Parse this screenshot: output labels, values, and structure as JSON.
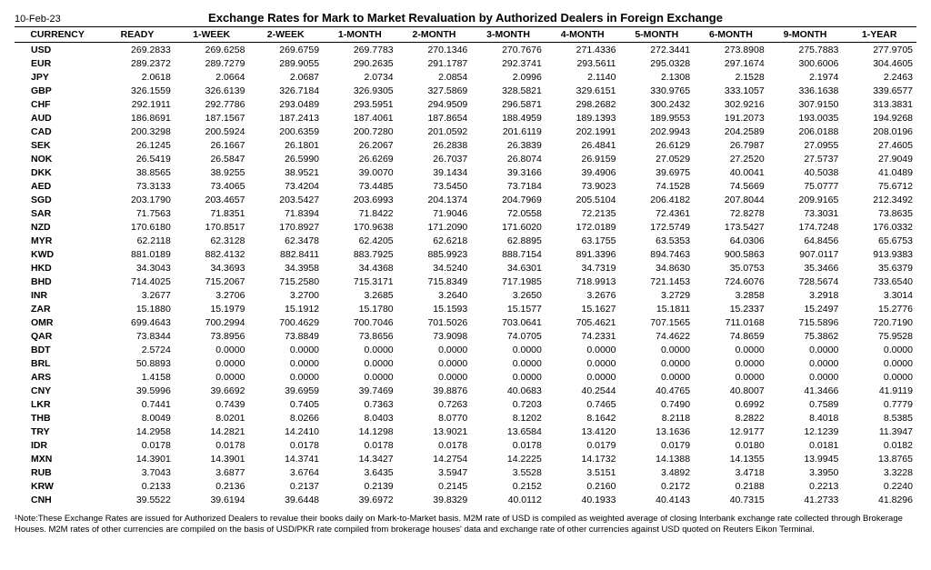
{
  "date": "10-Feb-23",
  "title": "Exchange Rates for Mark to Market Revaluation by Authorized Dealers in Foreign Exchange",
  "columns": [
    "CURRENCY",
    "READY",
    "1-WEEK",
    "2-WEEK",
    "1-MONTH",
    "2-MONTH",
    "3-MONTH",
    "4-MONTH",
    "5-MONTH",
    "6-MONTH",
    "9-MONTH",
    "1-YEAR"
  ],
  "rows": [
    {
      "c": "USD",
      "v": [
        "269.2833",
        "269.6258",
        "269.6759",
        "269.7783",
        "270.1346",
        "270.7676",
        "271.4336",
        "272.3441",
        "273.8908",
        "275.7883",
        "277.9705"
      ]
    },
    {
      "c": "EUR",
      "v": [
        "289.2372",
        "289.7279",
        "289.9055",
        "290.2635",
        "291.1787",
        "292.3741",
        "293.5611",
        "295.0328",
        "297.1674",
        "300.6006",
        "304.4605"
      ]
    },
    {
      "c": "JPY",
      "v": [
        "2.0618",
        "2.0664",
        "2.0687",
        "2.0734",
        "2.0854",
        "2.0996",
        "2.1140",
        "2.1308",
        "2.1528",
        "2.1974",
        "2.2463"
      ]
    },
    {
      "c": "GBP",
      "v": [
        "326.1559",
        "326.6139",
        "326.7184",
        "326.9305",
        "327.5869",
        "328.5821",
        "329.6151",
        "330.9765",
        "333.1057",
        "336.1638",
        "339.6577"
      ]
    },
    {
      "c": "CHF",
      "v": [
        "292.1911",
        "292.7786",
        "293.0489",
        "293.5951",
        "294.9509",
        "296.5871",
        "298.2682",
        "300.2432",
        "302.9216",
        "307.9150",
        "313.3831"
      ]
    },
    {
      "c": "AUD",
      "v": [
        "186.8691",
        "187.1567",
        "187.2413",
        "187.4061",
        "187.8654",
        "188.4959",
        "189.1393",
        "189.9553",
        "191.2073",
        "193.0035",
        "194.9268"
      ]
    },
    {
      "c": "CAD",
      "v": [
        "200.3298",
        "200.5924",
        "200.6359",
        "200.7280",
        "201.0592",
        "201.6119",
        "202.1991",
        "202.9943",
        "204.2589",
        "206.0188",
        "208.0196"
      ]
    },
    {
      "c": "SEK",
      "v": [
        "26.1245",
        "26.1667",
        "26.1801",
        "26.2067",
        "26.2838",
        "26.3839",
        "26.4841",
        "26.6129",
        "26.7987",
        "27.0955",
        "27.4605"
      ]
    },
    {
      "c": "NOK",
      "v": [
        "26.5419",
        "26.5847",
        "26.5990",
        "26.6269",
        "26.7037",
        "26.8074",
        "26.9159",
        "27.0529",
        "27.2520",
        "27.5737",
        "27.9049"
      ]
    },
    {
      "c": "DKK",
      "v": [
        "38.8565",
        "38.9255",
        "38.9521",
        "39.0070",
        "39.1434",
        "39.3166",
        "39.4906",
        "39.6975",
        "40.0041",
        "40.5038",
        "41.0489"
      ]
    },
    {
      "c": "AED",
      "v": [
        "73.3133",
        "73.4065",
        "73.4204",
        "73.4485",
        "73.5450",
        "73.7184",
        "73.9023",
        "74.1528",
        "74.5669",
        "75.0777",
        "75.6712"
      ]
    },
    {
      "c": "SGD",
      "v": [
        "203.1790",
        "203.4657",
        "203.5427",
        "203.6993",
        "204.1374",
        "204.7969",
        "205.5104",
        "206.4182",
        "207.8044",
        "209.9165",
        "212.3492"
      ]
    },
    {
      "c": "SAR",
      "v": [
        "71.7563",
        "71.8351",
        "71.8394",
        "71.8422",
        "71.9046",
        "72.0558",
        "72.2135",
        "72.4361",
        "72.8278",
        "73.3031",
        "73.8635"
      ]
    },
    {
      "c": "NZD",
      "v": [
        "170.6180",
        "170.8517",
        "170.8927",
        "170.9638",
        "171.2090",
        "171.6020",
        "172.0189",
        "172.5749",
        "173.5427",
        "174.7248",
        "176.0332"
      ]
    },
    {
      "c": "MYR",
      "v": [
        "62.2118",
        "62.3128",
        "62.3478",
        "62.4205",
        "62.6218",
        "62.8895",
        "63.1755",
        "63.5353",
        "64.0306",
        "64.8456",
        "65.6753"
      ]
    },
    {
      "c": "KWD",
      "v": [
        "881.0189",
        "882.4132",
        "882.8411",
        "883.7925",
        "885.9923",
        "888.7154",
        "891.3396",
        "894.7463",
        "900.5863",
        "907.0117",
        "913.9383"
      ]
    },
    {
      "c": "HKD",
      "v": [
        "34.3043",
        "34.3693",
        "34.3958",
        "34.4368",
        "34.5240",
        "34.6301",
        "34.7319",
        "34.8630",
        "35.0753",
        "35.3466",
        "35.6379"
      ]
    },
    {
      "c": "BHD",
      "v": [
        "714.4025",
        "715.2067",
        "715.2580",
        "715.3171",
        "715.8349",
        "717.1985",
        "718.9913",
        "721.1453",
        "724.6076",
        "728.5674",
        "733.6540"
      ]
    },
    {
      "c": "INR",
      "v": [
        "3.2677",
        "3.2706",
        "3.2700",
        "3.2685",
        "3.2640",
        "3.2650",
        "3.2676",
        "3.2729",
        "3.2858",
        "3.2918",
        "3.3014"
      ]
    },
    {
      "c": "ZAR",
      "v": [
        "15.1880",
        "15.1979",
        "15.1912",
        "15.1780",
        "15.1593",
        "15.1577",
        "15.1627",
        "15.1811",
        "15.2337",
        "15.2497",
        "15.2776"
      ]
    },
    {
      "c": "OMR",
      "v": [
        "699.4643",
        "700.2994",
        "700.4629",
        "700.7046",
        "701.5026",
        "703.0641",
        "705.4621",
        "707.1565",
        "711.0168",
        "715.5896",
        "720.7190"
      ]
    },
    {
      "c": "QAR",
      "v": [
        "73.8344",
        "73.8956",
        "73.8849",
        "73.8656",
        "73.9098",
        "74.0705",
        "74.2331",
        "74.4622",
        "74.8659",
        "75.3862",
        "75.9528"
      ]
    },
    {
      "c": "BDT",
      "v": [
        "2.5724",
        "0.0000",
        "0.0000",
        "0.0000",
        "0.0000",
        "0.0000",
        "0.0000",
        "0.0000",
        "0.0000",
        "0.0000",
        "0.0000"
      ]
    },
    {
      "c": "BRL",
      "v": [
        "50.8893",
        "0.0000",
        "0.0000",
        "0.0000",
        "0.0000",
        "0.0000",
        "0.0000",
        "0.0000",
        "0.0000",
        "0.0000",
        "0.0000"
      ]
    },
    {
      "c": "ARS",
      "v": [
        "1.4158",
        "0.0000",
        "0.0000",
        "0.0000",
        "0.0000",
        "0.0000",
        "0.0000",
        "0.0000",
        "0.0000",
        "0.0000",
        "0.0000"
      ]
    },
    {
      "c": "CNY",
      "v": [
        "39.5996",
        "39.6692",
        "39.6959",
        "39.7469",
        "39.8876",
        "40.0683",
        "40.2544",
        "40.4765",
        "40.8007",
        "41.3466",
        "41.9119"
      ]
    },
    {
      "c": "LKR",
      "v": [
        "0.7441",
        "0.7439",
        "0.7405",
        "0.7363",
        "0.7263",
        "0.7203",
        "0.7465",
        "0.7490",
        "0.6992",
        "0.7589",
        "0.7779"
      ]
    },
    {
      "c": "THB",
      "v": [
        "8.0049",
        "8.0201",
        "8.0266",
        "8.0403",
        "8.0770",
        "8.1202",
        "8.1642",
        "8.2118",
        "8.2822",
        "8.4018",
        "8.5385"
      ]
    },
    {
      "c": "TRY",
      "v": [
        "14.2958",
        "14.2821",
        "14.2410",
        "14.1298",
        "13.9021",
        "13.6584",
        "13.4120",
        "13.1636",
        "12.9177",
        "12.1239",
        "11.3947"
      ]
    },
    {
      "c": "IDR",
      "v": [
        "0.0178",
        "0.0178",
        "0.0178",
        "0.0178",
        "0.0178",
        "0.0178",
        "0.0179",
        "0.0179",
        "0.0180",
        "0.0181",
        "0.0182"
      ]
    },
    {
      "c": "MXN",
      "v": [
        "14.3901",
        "14.3901",
        "14.3741",
        "14.3427",
        "14.2754",
        "14.2225",
        "14.1732",
        "14.1388",
        "14.1355",
        "13.9945",
        "13.8765"
      ]
    },
    {
      "c": "RUB",
      "v": [
        "3.7043",
        "3.6877",
        "3.6764",
        "3.6435",
        "3.5947",
        "3.5528",
        "3.5151",
        "3.4892",
        "3.4718",
        "3.3950",
        "3.3228"
      ]
    },
    {
      "c": "KRW",
      "v": [
        "0.2133",
        "0.2136",
        "0.2137",
        "0.2139",
        "0.2145",
        "0.2152",
        "0.2160",
        "0.2172",
        "0.2188",
        "0.2213",
        "0.2240"
      ]
    },
    {
      "c": "CNH",
      "v": [
        "39.5522",
        "39.6194",
        "39.6448",
        "39.6972",
        "39.8329",
        "40.0112",
        "40.1933",
        "40.4143",
        "40.7315",
        "41.2733",
        "41.8296"
      ]
    }
  ],
  "footnote": "¹Note:These Exchange Rates are issued for Authorized Dealers to revalue their books daily on Mark-to-Market basis. M2M rate of USD is compiled as weighted average of closing Interbank exchange rate collected through Brokerage Houses. M2M rates of other currencies are compiled on the basis of USD/PKR rate compiled from brokerage houses' data and exchange rate of other currencies against USD quoted on Reuters Eikon Terminal."
}
